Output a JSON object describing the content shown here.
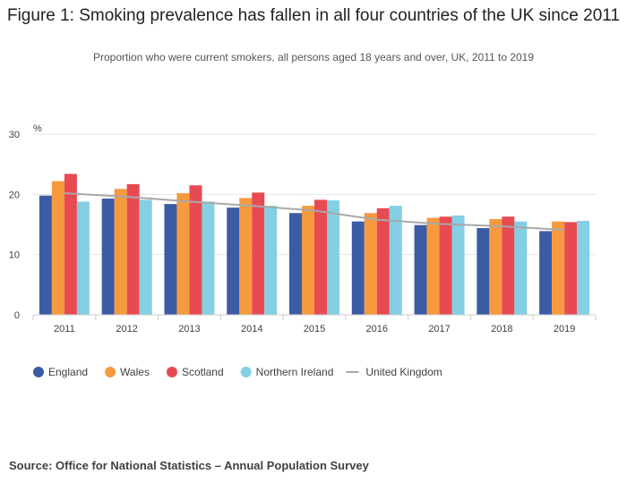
{
  "title": "Figure 1: Smoking prevalence has fallen in all four countries of the UK since 2011",
  "subtitle": "Proportion who were current smokers, all persons aged 18 years and over, UK, 2011 to 2019",
  "source": "Source: Office for National Statistics – Annual Population Survey",
  "chart_data": {
    "type": "bar",
    "ylabel": "%",
    "ylim": [
      0,
      30
    ],
    "yticks": [
      0,
      10,
      20,
      30
    ],
    "grid": true,
    "legend_position": "bottom-left",
    "categories": [
      "2011",
      "2012",
      "2013",
      "2014",
      "2015",
      "2016",
      "2017",
      "2018",
      "2019"
    ],
    "series": [
      {
        "name": "England",
        "type": "bar",
        "color": "#3c5ba5",
        "values": [
          19.8,
          19.3,
          18.4,
          17.8,
          16.9,
          15.5,
          14.9,
          14.4,
          13.9
        ]
      },
      {
        "name": "Wales",
        "type": "bar",
        "color": "#f79a3e",
        "values": [
          22.2,
          20.9,
          20.2,
          19.4,
          18.1,
          16.9,
          16.1,
          15.9,
          15.5
        ]
      },
      {
        "name": "Scotland",
        "type": "bar",
        "color": "#e84a52",
        "values": [
          23.4,
          21.7,
          21.5,
          20.3,
          19.1,
          17.7,
          16.3,
          16.3,
          15.4
        ]
      },
      {
        "name": "Northern Ireland",
        "type": "bar",
        "color": "#85cfe4",
        "values": [
          18.8,
          19.1,
          18.8,
          18.1,
          19.0,
          18.1,
          16.5,
          15.5,
          15.6
        ]
      },
      {
        "name": "United Kingdom",
        "type": "line",
        "color": "#a8a8a8",
        "values": [
          20.2,
          19.6,
          18.8,
          18.1,
          17.3,
          15.8,
          15.1,
          14.7,
          14.1
        ]
      }
    ]
  }
}
